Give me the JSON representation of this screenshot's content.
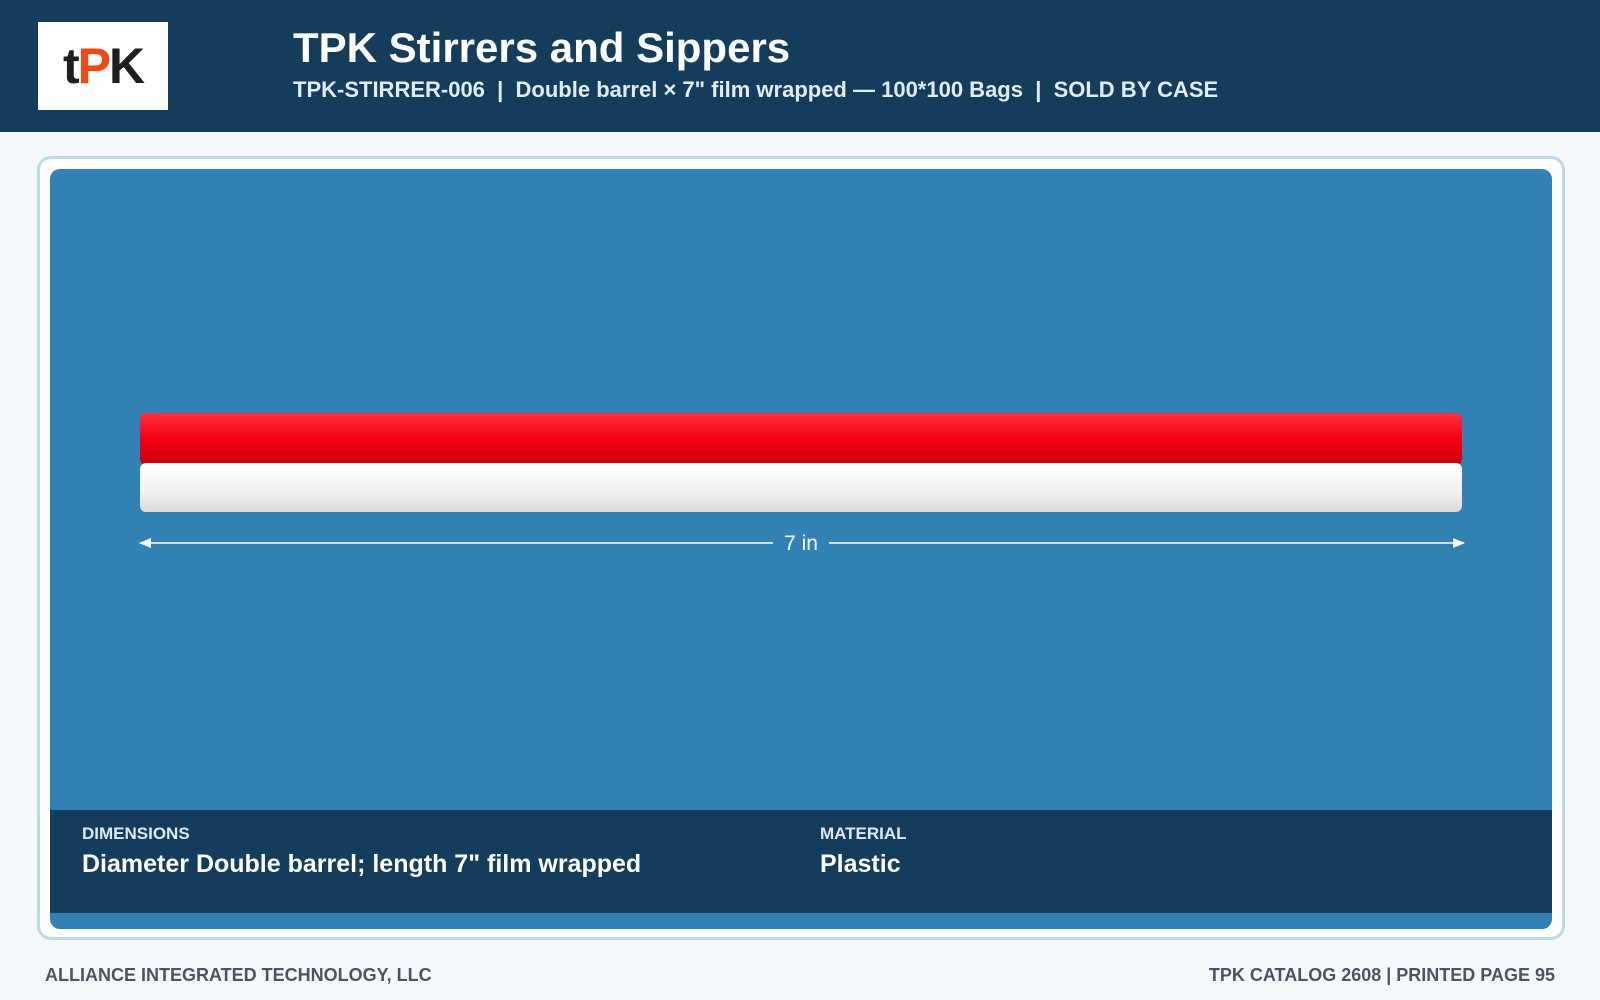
{
  "header": {
    "logo": [
      "t",
      "P",
      "K"
    ],
    "title": "TPK Stirrers and Sippers",
    "subtitle": "TPK-STIRRER-006  |  Double barrel × 7\" film wrapped — 100*100 Bags  |  SOLD BY CASE"
  },
  "image": {
    "dimension_label": "7 in"
  },
  "specs": [
    {
      "label": "DIMENSIONS",
      "value": "Diameter Double barrel; length 7\" film wrapped"
    },
    {
      "label": "MATERIAL",
      "value": "Plastic"
    }
  ],
  "footer": {
    "left": "ALLIANCE INTEGRATED TECHNOLOGY, LLC",
    "right": "TPK CATALOG 2608 | PRINTED PAGE 95"
  }
}
